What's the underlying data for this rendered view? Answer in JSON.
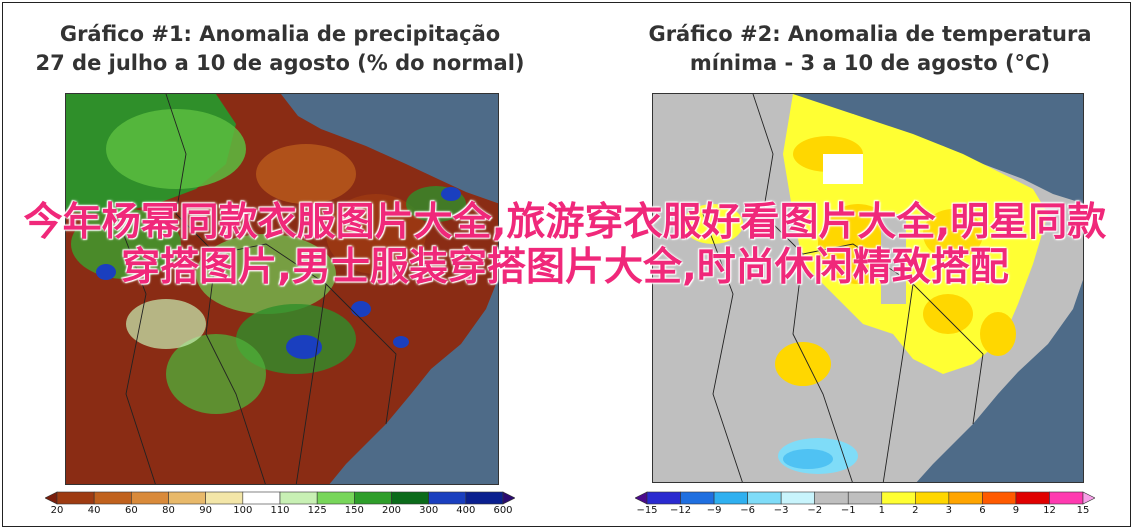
{
  "panel1": {
    "title_line1": "Gráfico #1: Anomalia de precipitação",
    "title_line2": "27 de julho a 10 de agosto (% do normal)",
    "colorbar": {
      "ticks": [
        "20",
        "40",
        "60",
        "80",
        "90",
        "100",
        "110",
        "125",
        "150",
        "200",
        "300",
        "400",
        "600"
      ],
      "colors": [
        "#7a1e0c",
        "#9e3b12",
        "#c0611d",
        "#d98a3a",
        "#e8b96a",
        "#f3e6a8",
        "#ffffff",
        "#c8f0b4",
        "#78d65a",
        "#2e9e2a",
        "#0b6b1a",
        "#1a3fbf",
        "#0a1f8f",
        "#2a0a6f"
      ]
    }
  },
  "panel2": {
    "title_line1": "Gráfico #2: Anomalia de temperatura",
    "title_line2": "mínima - 3 a 10 de agosto (°C)",
    "colorbar": {
      "ticks": [
        "−15",
        "−12",
        "−9",
        "−6",
        "−3",
        "−2",
        "−1",
        "1",
        "2",
        "3",
        "6",
        "9",
        "12",
        "15"
      ],
      "colors": [
        "#4b0a8c",
        "#2a2ad0",
        "#1f6fe0",
        "#2fb0f0",
        "#7fdcf8",
        "#c8f4fc",
        "#bfbfbf",
        "#bfbfbf",
        "#ffff33",
        "#ffd700",
        "#ffa500",
        "#ff5a00",
        "#e00000",
        "#ff3ab0",
        "#f7a0e8"
      ]
    }
  },
  "overlay_text": "今年杨幂同款衣服图片大全,旅游穿衣服好看图片大全,明星同款穿搭图片,男士服装穿搭图片大全,时尚休闲精致搭配"
}
